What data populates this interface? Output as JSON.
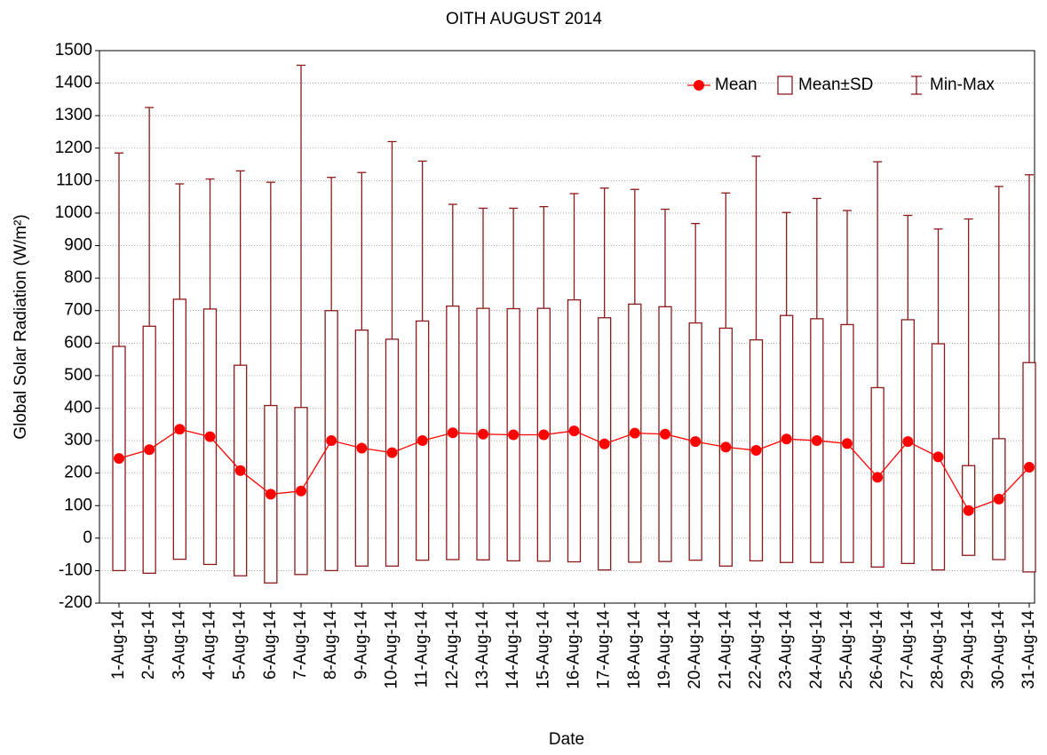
{
  "chart_data": {
    "type": "box",
    "title": "OITH AUGUST 2014",
    "x_label": "Date",
    "y_label": "Global Solar Radiation (W/m²)",
    "categories": [
      "1-Aug-14",
      "2-Aug-14",
      "3-Aug-14",
      "4-Aug-14",
      "5-Aug-14",
      "6-Aug-14",
      "7-Aug-14",
      "8-Aug-14",
      "9-Aug-14",
      "10-Aug-14",
      "11-Aug-14",
      "12-Aug-14",
      "13-Aug-14",
      "14-Aug-14",
      "15-Aug-14",
      "16-Aug-14",
      "17-Aug-14",
      "18-Aug-14",
      "19-Aug-14",
      "20-Aug-14",
      "21-Aug-14",
      "22-Aug-14",
      "23-Aug-14",
      "24-Aug-14",
      "25-Aug-14",
      "26-Aug-14",
      "27-Aug-14",
      "28-Aug-14",
      "29-Aug-14",
      "30-Aug-14",
      "31-Aug-14"
    ],
    "mean": [
      245,
      272,
      335,
      312,
      208,
      135,
      145,
      300,
      277,
      263,
      300,
      324,
      320,
      318,
      318,
      330,
      290,
      323,
      320,
      297,
      280,
      270,
      305,
      300,
      291,
      187,
      297,
      250,
      85,
      120,
      218
    ],
    "sd": [
      345,
      380,
      400,
      393,
      324,
      273,
      257,
      400,
      363,
      349,
      368,
      390,
      387,
      388,
      389,
      403,
      388,
      397,
      392,
      365,
      366,
      340,
      380,
      375,
      366,
      276,
      375,
      348,
      138,
      186,
      322
    ],
    "min": [
      0,
      0,
      0,
      0,
      0,
      0,
      0,
      0,
      0,
      0,
      0,
      0,
      0,
      0,
      0,
      0,
      0,
      0,
      0,
      0,
      0,
      0,
      0,
      0,
      0,
      0,
      0,
      0,
      0,
      0,
      0
    ],
    "max": [
      1185,
      1325,
      1090,
      1105,
      1130,
      1095,
      1455,
      1110,
      1125,
      1220,
      1160,
      1027,
      1015,
      1015,
      1020,
      1060,
      1077,
      1073,
      1012,
      968,
      1062,
      1175,
      1002,
      1045,
      1008,
      1158,
      993,
      951,
      982,
      1082,
      1118
    ],
    "legend": {
      "mean": "Mean",
      "box": "Mean±SD",
      "whisker": "Min-Max",
      "position": "upper right"
    },
    "mean_color": "#ff0000",
    "box_color": "#8b1a1a",
    "ylim": [
      -200,
      1500
    ],
    "yticks": [
      -200,
      -100,
      0,
      100,
      200,
      300,
      400,
      500,
      600,
      700,
      800,
      900,
      1000,
      1100,
      1200,
      1300,
      1400,
      1500
    ],
    "grid": true
  }
}
